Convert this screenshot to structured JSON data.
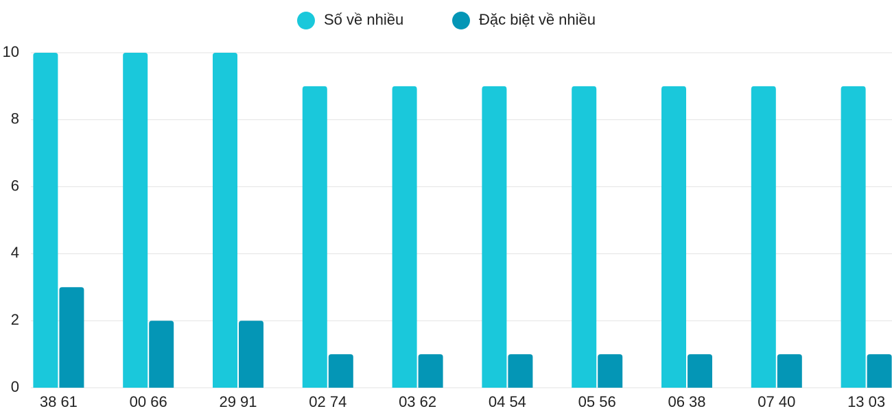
{
  "chart_data": {
    "type": "bar",
    "categories": [
      "38 61",
      "00 66",
      "29 91",
      "02 74",
      "03 62",
      "04 54",
      "05 56",
      "06 38",
      "07 40",
      "13 03"
    ],
    "series": [
      {
        "name": "Số về nhiều",
        "color": "#1ac8db",
        "values": [
          10,
          10,
          10,
          9,
          9,
          9,
          9,
          9,
          9,
          9
        ]
      },
      {
        "name": "Đặc biệt về nhiều",
        "color": "#0496b6",
        "values": [
          3,
          2,
          2,
          1,
          1,
          1,
          1,
          1,
          1,
          1
        ]
      }
    ],
    "ylim": [
      0,
      10
    ],
    "yticks": [
      0,
      2,
      4,
      6,
      8,
      10
    ],
    "grid": true,
    "legend": "top"
  }
}
